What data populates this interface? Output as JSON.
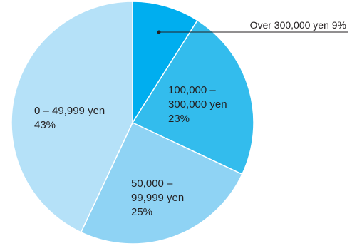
{
  "chart_data": {
    "type": "pie",
    "start": "12 o'clock",
    "direction": "clockwise",
    "slices": [
      {
        "category": "Over 300,000 yen",
        "value": 9,
        "value_label": "9%",
        "color": "#00aeef"
      },
      {
        "category": "100,000 – 300,000 yen",
        "value": 23,
        "value_label": "23%",
        "color": "#33bced",
        "label_lines": [
          "100,000 –",
          "300,000 yen",
          "23%"
        ]
      },
      {
        "category": "50,000 – 99,999 yen",
        "value": 25,
        "value_label": "25%",
        "color": "#8fd3f4",
        "label_lines": [
          "50,000 –",
          "99,999 yen",
          "25%"
        ]
      },
      {
        "category": "0 – 49,999 yen",
        "value": 43,
        "value_label": "43%",
        "color": "#b5e1f8",
        "label_lines": [
          "0 – 49,999 yen",
          "43%"
        ]
      }
    ],
    "callout": {
      "text": "Over 300,000 yen  9%",
      "line_color": "#231f20"
    },
    "slice_border_color": "#ffffff"
  }
}
